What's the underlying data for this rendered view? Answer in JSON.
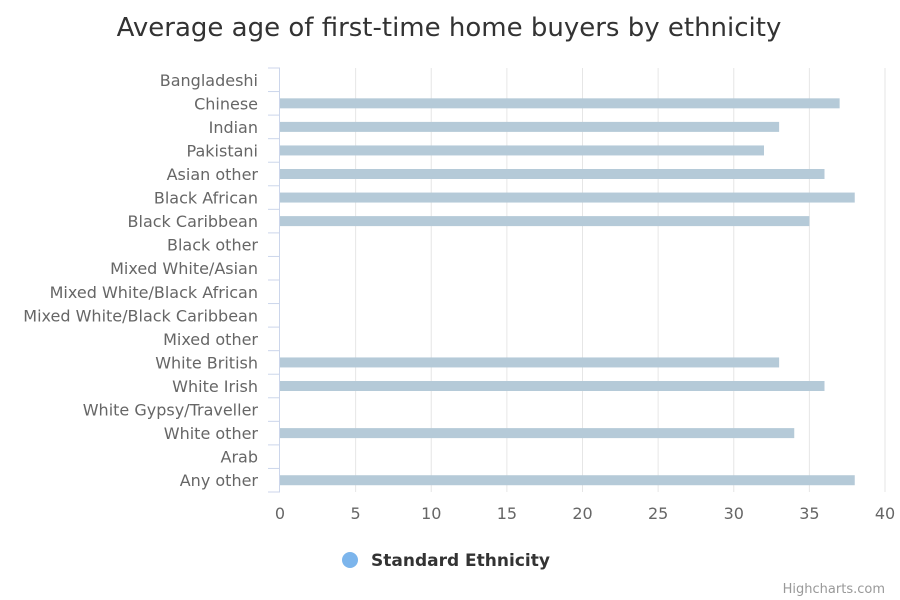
{
  "chart_data": {
    "type": "bar",
    "orientation": "horizontal",
    "title": "Average age of first-time home buyers by ethnicity",
    "categories": [
      "Bangladeshi",
      "Chinese",
      "Indian",
      "Pakistani",
      "Asian other",
      "Black African",
      "Black Caribbean",
      "Black other",
      "Mixed White/Asian",
      "Mixed White/Black African",
      "Mixed White/Black Caribbean",
      "Mixed other",
      "White British",
      "White Irish",
      "White Gypsy/Traveller",
      "White other",
      "Arab",
      "Any other"
    ],
    "series": [
      {
        "name": "Standard Ethnicity",
        "color": "#b5cad8",
        "legend_color": "#7cb5ec",
        "values": [
          null,
          37,
          33,
          32,
          36,
          38,
          35,
          null,
          null,
          null,
          null,
          null,
          33,
          36,
          null,
          34,
          null,
          38
        ]
      }
    ],
    "xlim": [
      0,
      40
    ],
    "x_ticks": [
      0,
      5,
      10,
      15,
      20,
      25,
      30,
      35,
      40
    ],
    "grid": true,
    "legend_position": "bottom-center",
    "credits": "Highcharts.com"
  }
}
